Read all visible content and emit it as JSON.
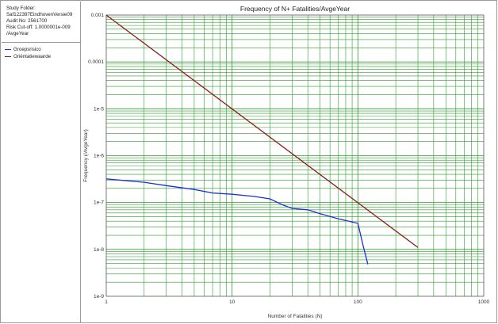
{
  "info": {
    "lines": [
      "Study Folder:",
      "Saf122397EindhovenVersie09",
      "Audit No: 2561700",
      "Risk Cut-off: 1.0000001e-009",
      "/AvgeYear"
    ]
  },
  "chart_data": {
    "type": "line",
    "title": "Frequency of N+ Fatalities/AvgeYear",
    "xlabel": "Number of Fatalities (N)",
    "ylabel": "Frequency (/AvgeYear)",
    "xscale": "log",
    "yscale": "log",
    "xlim": [
      1,
      1000
    ],
    "ylim": [
      1e-09,
      0.001
    ],
    "grid": true,
    "legend_position": "left-panel",
    "x_tick_labels": [
      "1",
      "10",
      "100",
      "1000"
    ],
    "y_tick_labels": [
      "1e-9",
      "1e-8",
      "1e-7",
      "1e-6",
      "1e-5",
      "0.0001",
      "0.001"
    ],
    "series": [
      {
        "name": "Groepsrisico",
        "color": "#1f2fd6",
        "points": [
          [
            1,
            3.2e-07
          ],
          [
            2,
            2.7e-07
          ],
          [
            3,
            2.3e-07
          ],
          [
            5,
            1.9e-07
          ],
          [
            7,
            1.6e-07
          ],
          [
            10,
            1.5e-07
          ],
          [
            15,
            1.35e-07
          ],
          [
            20,
            1.2e-07
          ],
          [
            25,
            9e-08
          ],
          [
            30,
            7.5e-08
          ],
          [
            40,
            7e-08
          ],
          [
            50,
            5.8e-08
          ],
          [
            70,
            4.5e-08
          ],
          [
            100,
            3.6e-08
          ],
          [
            110,
            1.2e-08
          ],
          [
            120,
            4.8e-09
          ]
        ]
      },
      {
        "name": "Oriëntatiewaarde",
        "color": "#8b1a1a",
        "points": [
          [
            1,
            0.001
          ],
          [
            300,
            1.1e-08
          ]
        ]
      }
    ]
  }
}
